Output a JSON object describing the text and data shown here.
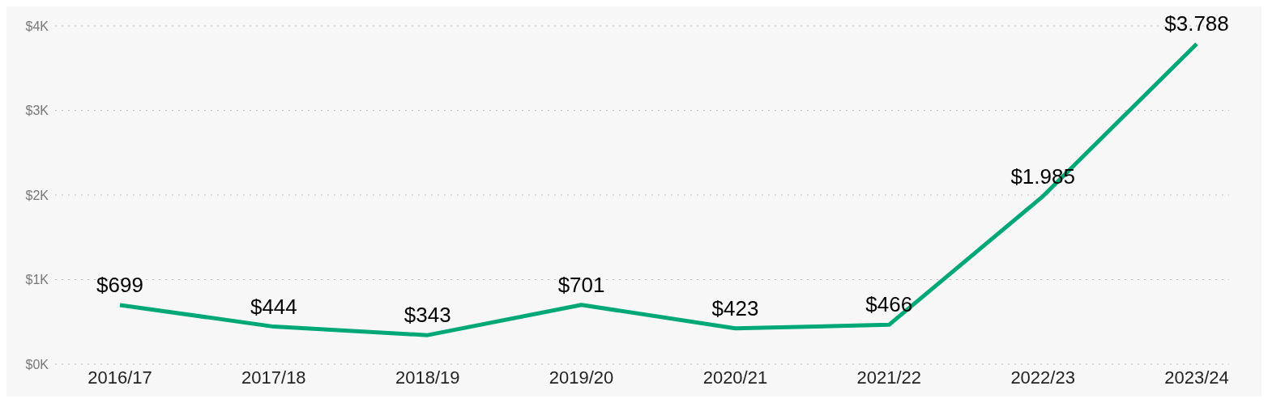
{
  "chart_data": {
    "type": "line",
    "categories": [
      "2016/17",
      "2017/18",
      "2018/19",
      "2019/20",
      "2020/21",
      "2021/22",
      "2022/23",
      "2023/24"
    ],
    "series": [
      {
        "color": "#00a878",
        "values": [
          699,
          444,
          343,
          701,
          423,
          466,
          1985,
          3788
        ],
        "value_labels": [
          "$699",
          "$444",
          "$343",
          "$701",
          "$423",
          "$466",
          "$1.985",
          "$3.788"
        ]
      }
    ],
    "ylim": [
      0,
      4000
    ],
    "yticks": [
      {
        "value": 0,
        "label": "$0K"
      },
      {
        "value": 1000,
        "label": "$1K"
      },
      {
        "value": 2000,
        "label": "$2K"
      },
      {
        "value": 3000,
        "label": "$3K"
      },
      {
        "value": 4000,
        "label": "$4K"
      }
    ],
    "grid": "y",
    "marker": "none",
    "line_style": "solid"
  }
}
